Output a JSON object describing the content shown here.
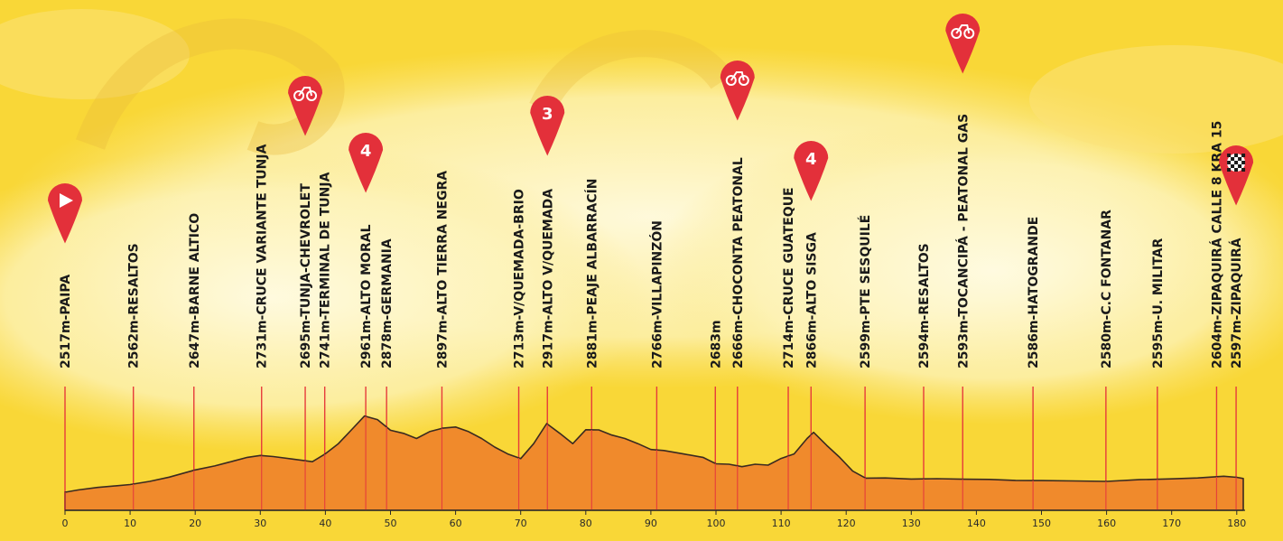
{
  "chart_data": {
    "type": "area",
    "title": "",
    "xlabel": "",
    "ylabel": "",
    "xlim": [
      0,
      181
    ],
    "x_ticks": [
      "0",
      "10",
      "20",
      "30",
      "40",
      "50",
      "60",
      "70",
      "80",
      "90",
      "100",
      "110",
      "120",
      "130",
      "140",
      "150",
      "160",
      "170",
      "180"
    ],
    "grid": false,
    "colors": {
      "profile_fill": "#f08a2c",
      "profile_stroke": "#3a2a20",
      "marker_line": "#e63b3b",
      "pin": "#e3303a",
      "background": "#f9d737"
    },
    "profile": {
      "x": [
        0,
        2,
        5,
        8,
        10,
        13,
        16,
        20,
        23,
        26,
        28,
        30,
        32,
        35,
        38,
        40,
        42,
        44,
        46,
        48,
        50,
        52,
        54,
        56,
        58,
        60,
        62,
        64,
        66,
        68,
        70,
        72,
        74,
        76,
        78,
        80,
        82,
        84,
        86,
        88,
        90,
        92,
        95,
        98,
        100,
        102,
        104,
        106,
        108,
        110,
        112,
        114,
        115,
        117,
        119,
        121,
        123,
        126,
        130,
        134,
        138,
        142,
        146,
        150,
        155,
        160,
        165,
        170,
        174,
        178,
        180,
        181
      ],
      "y": [
        2517,
        2530,
        2545,
        2555,
        2562,
        2580,
        2605,
        2647,
        2670,
        2700,
        2720,
        2731,
        2725,
        2710,
        2695,
        2741,
        2800,
        2880,
        2961,
        2940,
        2878,
        2860,
        2830,
        2870,
        2890,
        2897,
        2870,
        2830,
        2780,
        2740,
        2713,
        2800,
        2917,
        2860,
        2800,
        2881,
        2880,
        2850,
        2830,
        2800,
        2766,
        2760,
        2740,
        2720,
        2683,
        2680,
        2666,
        2680,
        2675,
        2714,
        2740,
        2830,
        2866,
        2790,
        2720,
        2640,
        2599,
        2600,
        2594,
        2596,
        2593,
        2592,
        2586,
        2585,
        2583,
        2580,
        2590,
        2595,
        2600,
        2610,
        2604,
        2597
      ]
    },
    "waypoints": [
      {
        "km": 0,
        "label": "2517m-PAIPA"
      },
      {
        "km": 10.5,
        "label": "2562m-RESALTOS"
      },
      {
        "km": 19.8,
        "label": "2647m-BARNE ALTICO"
      },
      {
        "km": 30.2,
        "label": "2731m-CRUCE VARIANTE TUNJA"
      },
      {
        "km": 36.9,
        "label": "2695m-TUNJA-CHEVROLET"
      },
      {
        "km": 39.9,
        "label": "2741m-TERMINAL DE TUNJA"
      },
      {
        "km": 46.2,
        "label": "2961m-ALTO MORAL"
      },
      {
        "km": 49.4,
        "label": "2878m-GERMANIA"
      },
      {
        "km": 57.9,
        "label": "2897m-ALTO TIERRA NEGRA"
      },
      {
        "km": 69.7,
        "label": "2713m-V/QUEMADA-BRIO"
      },
      {
        "km": 74.1,
        "label": "2917m-ALTO V/QUEMADA"
      },
      {
        "km": 80.9,
        "label": "2881m-PEAJE ALBARRACÍN"
      },
      {
        "km": 90.9,
        "label": "2766m-VILLAPINZÓN"
      },
      {
        "km": 99.9,
        "label": "2683m"
      },
      {
        "km": 103.3,
        "label": "2666m-CHOCONTA PEATONAL"
      },
      {
        "km": 111.1,
        "label": "2714m-CRUCE GUATEQUE"
      },
      {
        "km": 114.6,
        "label": "2866m-ALTO SISGA"
      },
      {
        "km": 122.9,
        "label": "2599m-PTE SESQUILÉ"
      },
      {
        "km": 131.9,
        "label": "2594m-RESALTOS"
      },
      {
        "km": 137.9,
        "label": "2593m-TOCANCIPÁ  -  PEATONAL GAS"
      },
      {
        "km": 148.7,
        "label": "2586m-HATOGRANDE"
      },
      {
        "km": 159.9,
        "label": "2580m-C.C FONTANAR"
      },
      {
        "km": 167.8,
        "label": "2595m-U. MILITAR"
      },
      {
        "km": 176.9,
        "label": "2604m-ZIPAQUIRÁ CALLE 8 KRA 15"
      },
      {
        "km": 179.9,
        "label": "2597m-ZIPAQUIRÁ"
      }
    ],
    "pins": [
      {
        "km": 0,
        "kind": "start",
        "symbol": "play-icon"
      },
      {
        "km": 36.9,
        "kind": "sprint",
        "symbol": "bike-icon"
      },
      {
        "km": 46.2,
        "kind": "climb",
        "text": "4"
      },
      {
        "km": 74.1,
        "kind": "climb",
        "text": "3"
      },
      {
        "km": 103.3,
        "kind": "sprint",
        "symbol": "bike-icon"
      },
      {
        "km": 114.6,
        "kind": "climb",
        "text": "4"
      },
      {
        "km": 137.9,
        "kind": "sprint",
        "symbol": "bike-icon"
      },
      {
        "km": 179.9,
        "kind": "finish",
        "symbol": "checkered-flag-icon"
      }
    ]
  }
}
